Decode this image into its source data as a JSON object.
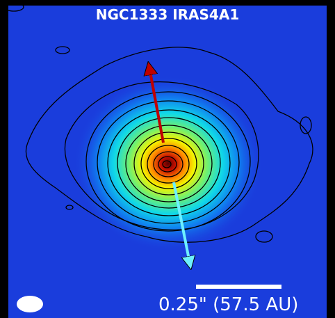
{
  "title": "NGC1333 IRAS4A1",
  "scale_bar_label": "0.25\" (57.5 AU)"
}
